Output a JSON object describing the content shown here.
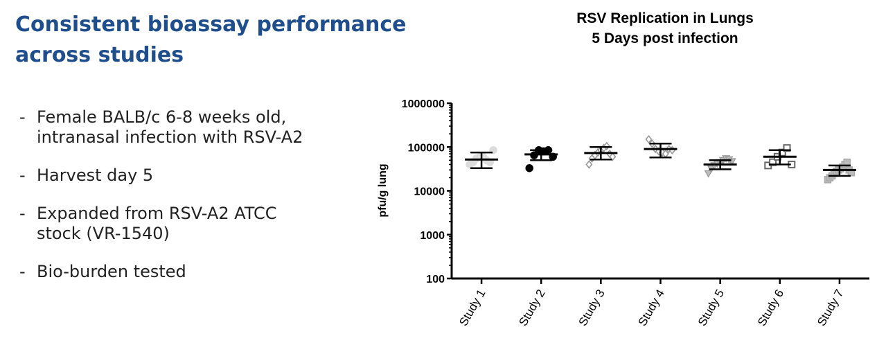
{
  "slide": {
    "title": "Consistent bioassay performance across studies",
    "bullets": [
      {
        "dash": "-",
        "lines": [
          "Female BALB/c 6-8 weeks old,",
          "intranasal infection with RSV-A2"
        ]
      },
      {
        "dash": "-",
        "lines": [
          "Harvest day 5"
        ]
      },
      {
        "dash": "-",
        "lines": [
          "Expanded from RSV-A2 ATCC",
          "stock (VR-1540)"
        ]
      },
      {
        "dash": "-",
        "lines": [
          "Bio-burden tested"
        ]
      }
    ]
  },
  "chart_data": {
    "type": "scatter",
    "title": [
      "RSV Replication in Lungs",
      "5 Days post infection"
    ],
    "ylabel": "pfu/g lung",
    "xlabel": "",
    "yscale": "log",
    "ylim": [
      100,
      1000000
    ],
    "yticks": [
      100,
      1000,
      10000,
      100000,
      1000000
    ],
    "ytick_labels": [
      "100",
      "1000",
      "10000",
      "100000",
      "1000000"
    ],
    "categories": [
      "Study 1",
      "Study 2",
      "Study 3",
      "Study 4",
      "Study 5",
      "Study 6",
      "Study 7"
    ],
    "series": [
      {
        "category": "Study 1",
        "marker": "circle",
        "fill": "#dddddd",
        "stroke": "#dddddd",
        "points": [
          40000,
          45000,
          55000,
          60000,
          60000,
          50000,
          45000,
          85000
        ],
        "mean": 52000,
        "lower": 33000,
        "upper": 75000
      },
      {
        "category": "Study 2",
        "marker": "circle",
        "fill": "#000000",
        "stroke": "#000000",
        "points": [
          33000,
          65000,
          85000,
          80000,
          85000,
          60000
        ],
        "mean": 68000,
        "lower": 50000,
        "upper": 85000
      },
      {
        "category": "Study 3",
        "marker": "diamond-open",
        "fill": "none",
        "stroke": "#999999",
        "points": [
          40000,
          55000,
          65000,
          75000,
          85000,
          95000,
          105000,
          70000,
          60000
        ],
        "mean": 73000,
        "lower": 52000,
        "upper": 100000
      },
      {
        "category": "Study 4",
        "marker": "diamond-open",
        "fill": "none",
        "stroke": "#999999",
        "points": [
          150000,
          120000,
          90000,
          80000,
          75000,
          70000,
          90000,
          85000
        ],
        "mean": 90000,
        "lower": 58000,
        "upper": 120000
      },
      {
        "category": "Study 5",
        "marker": "triangle-down",
        "fill": "#bbbbbb",
        "stroke": "#999999",
        "points": [
          25000,
          32000,
          38000,
          42000,
          45000,
          50000,
          55000,
          52000,
          47000
        ],
        "mean": 40000,
        "lower": 31000,
        "upper": 50000
      },
      {
        "category": "Study 6",
        "marker": "square-open",
        "fill": "none",
        "stroke": "#666666",
        "points": [
          38000,
          45000,
          60000,
          75000,
          95000,
          40000
        ],
        "mean": 60000,
        "lower": 40000,
        "upper": 85000
      },
      {
        "category": "Study 7",
        "marker": "square",
        "fill": "#bbbbbb",
        "stroke": "#aaaaaa",
        "points": [
          18000,
          20000,
          22000,
          25000,
          28000,
          30000,
          32000,
          35000,
          40000,
          45000,
          30000,
          26000
        ],
        "mean": 30000,
        "lower": 22000,
        "upper": 38000
      }
    ],
    "grid": false,
    "legend": "none"
  }
}
